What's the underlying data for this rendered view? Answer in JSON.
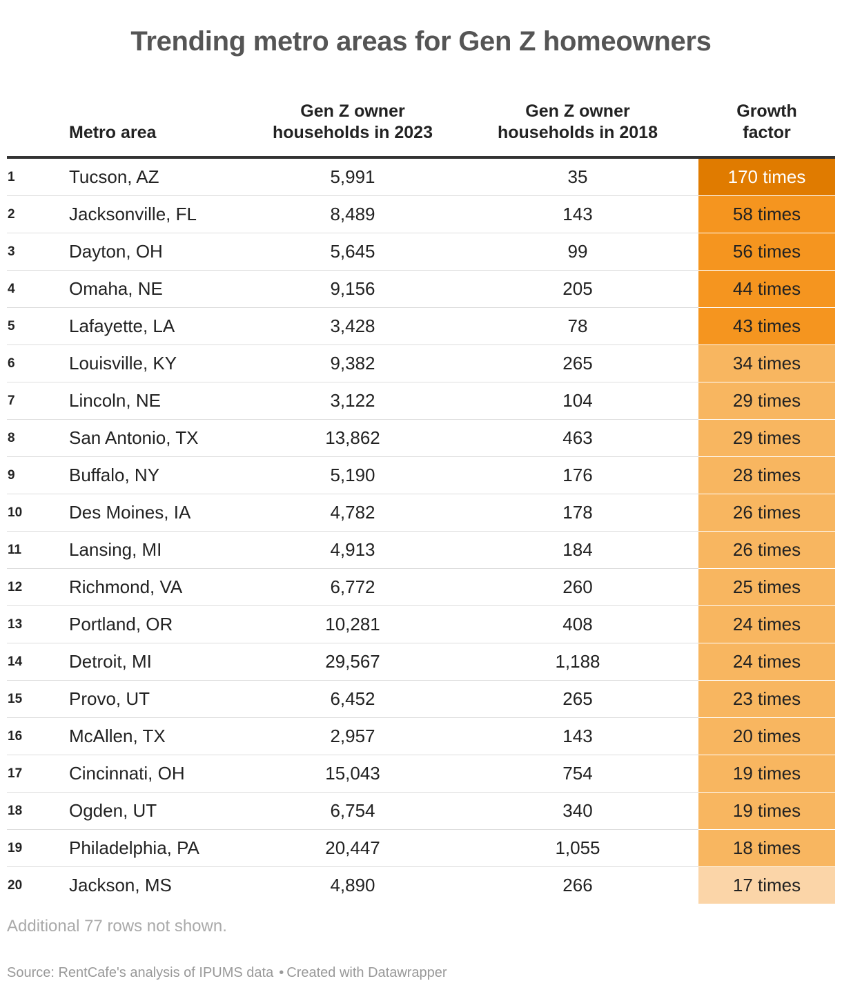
{
  "title": "Trending metro areas for Gen Z homeowners",
  "columns": {
    "rank": "",
    "metro": "Metro area",
    "y2023_line1": "Gen Z owner",
    "y2023_line2": "households in 2023",
    "y2018_line1": "Gen Z owner",
    "y2018_line2": "households in 2018",
    "growth_line1": "Growth",
    "growth_line2": "factor"
  },
  "note": "Additional 77 rows not shown.",
  "footer": {
    "source": "Source: RentCafe's analysis of IPUMS data",
    "separator": "•",
    "created": "Created with Datawrapper"
  },
  "colors": {
    "title": "#555555",
    "growth_scale": [
      "#fbd5a8",
      "#f8b660",
      "#f5951f",
      "#e07b00"
    ]
  },
  "chart_data": {
    "type": "table",
    "title": "Trending metro areas for Gen Z homeowners",
    "headers": [
      "",
      "Metro area",
      "Gen Z owner households in 2023",
      "Gen Z owner households in 2018",
      "Growth factor"
    ],
    "rows": [
      {
        "rank": "1",
        "metro": "Tucson, AZ",
        "y2023": "5,991",
        "y2018": "35",
        "growth": "170 times",
        "growth_value": 170
      },
      {
        "rank": "2",
        "metro": "Jacksonville, FL",
        "y2023": "8,489",
        "y2018": "143",
        "growth": "58 times",
        "growth_value": 58
      },
      {
        "rank": "3",
        "metro": "Dayton, OH",
        "y2023": "5,645",
        "y2018": "99",
        "growth": "56 times",
        "growth_value": 56
      },
      {
        "rank": "4",
        "metro": "Omaha, NE",
        "y2023": "9,156",
        "y2018": "205",
        "growth": "44 times",
        "growth_value": 44
      },
      {
        "rank": "5",
        "metro": "Lafayette, LA",
        "y2023": "3,428",
        "y2018": "78",
        "growth": "43 times",
        "growth_value": 43
      },
      {
        "rank": "6",
        "metro": "Louisville, KY",
        "y2023": "9,382",
        "y2018": "265",
        "growth": "34 times",
        "growth_value": 34
      },
      {
        "rank": "7",
        "metro": "Lincoln, NE",
        "y2023": "3,122",
        "y2018": "104",
        "growth": "29 times",
        "growth_value": 29
      },
      {
        "rank": "8",
        "metro": "San Antonio, TX",
        "y2023": "13,862",
        "y2018": "463",
        "growth": "29 times",
        "growth_value": 29
      },
      {
        "rank": "9",
        "metro": "Buffalo, NY",
        "y2023": "5,190",
        "y2018": "176",
        "growth": "28 times",
        "growth_value": 28
      },
      {
        "rank": "10",
        "metro": "Des Moines, IA",
        "y2023": "4,782",
        "y2018": "178",
        "growth": "26 times",
        "growth_value": 26
      },
      {
        "rank": "11",
        "metro": "Lansing, MI",
        "y2023": "4,913",
        "y2018": "184",
        "growth": "26 times",
        "growth_value": 26
      },
      {
        "rank": "12",
        "metro": "Richmond, VA",
        "y2023": "6,772",
        "y2018": "260",
        "growth": "25 times",
        "growth_value": 25
      },
      {
        "rank": "13",
        "metro": "Portland, OR",
        "y2023": "10,281",
        "y2018": "408",
        "growth": "24 times",
        "growth_value": 24
      },
      {
        "rank": "14",
        "metro": "Detroit, MI",
        "y2023": "29,567",
        "y2018": "1,188",
        "growth": "24 times",
        "growth_value": 24
      },
      {
        "rank": "15",
        "metro": "Provo, UT",
        "y2023": "6,452",
        "y2018": "265",
        "growth": "23 times",
        "growth_value": 23
      },
      {
        "rank": "16",
        "metro": "McAllen, TX",
        "y2023": "2,957",
        "y2018": "143",
        "growth": "20 times",
        "growth_value": 20
      },
      {
        "rank": "17",
        "metro": "Cincinnati, OH",
        "y2023": "15,043",
        "y2018": "754",
        "growth": "19 times",
        "growth_value": 19
      },
      {
        "rank": "18",
        "metro": "Ogden, UT",
        "y2023": "6,754",
        "y2018": "340",
        "growth": "19 times",
        "growth_value": 19
      },
      {
        "rank": "19",
        "metro": "Philadelphia, PA",
        "y2023": "20,447",
        "y2018": "1,055",
        "growth": "18 times",
        "growth_value": 18
      },
      {
        "rank": "20",
        "metro": "Jackson, MS",
        "y2023": "4,890",
        "y2018": "266",
        "growth": "17 times",
        "growth_value": 17
      }
    ]
  }
}
